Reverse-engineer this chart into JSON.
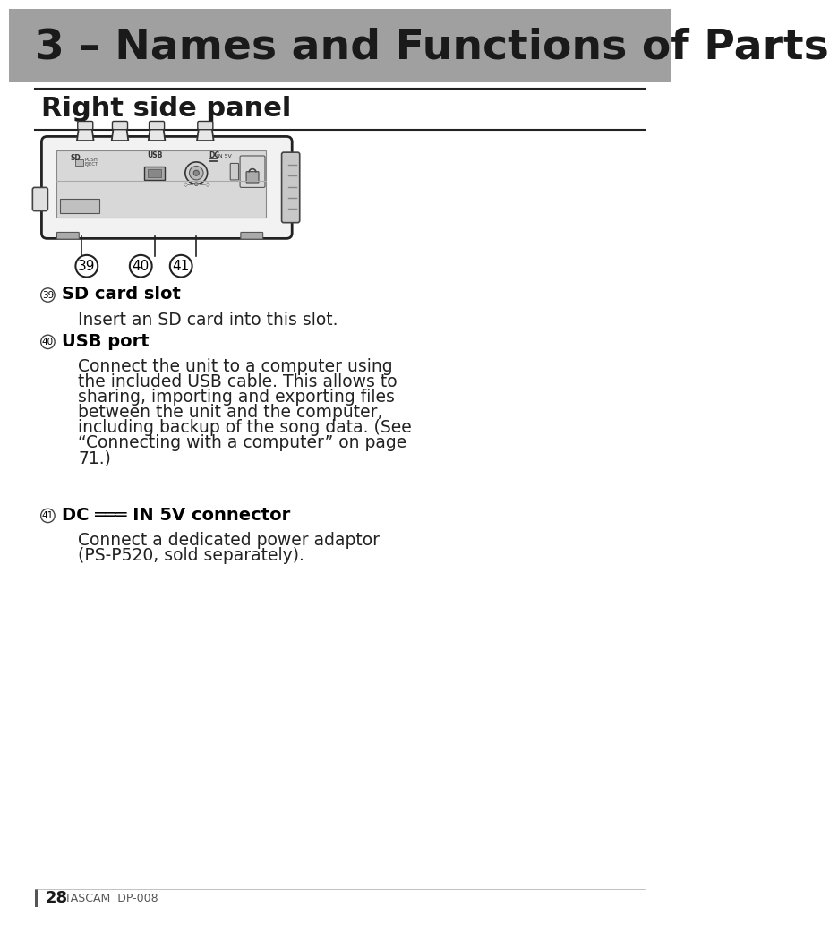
{
  "title": "3 – Names and Functions of Parts",
  "title_bg_color": "#a0a0a0",
  "title_text_color": "#1a1a1a",
  "section_title": "Right side panel",
  "items": [
    {
      "number": "39",
      "label": "SD card slot",
      "description": "Insert an SD card into this slot."
    },
    {
      "number": "40",
      "label": "USB port",
      "description": "Connect the unit to a computer using\nthe included USB cable. This allows to\nsharing, importing and exporting files\nbetween the unit and the computer,\nincluding backup of the song data. (See\n“Connecting with a computer” on page\n71.)"
    },
    {
      "number": "41",
      "label": "DC ═══ IN 5V connector",
      "description": "Connect a dedicated power adaptor\n(PS-P520, sold separately)."
    }
  ],
  "footer_page": "28",
  "footer_brand": "TASCAM  DP-008",
  "bg_color": "#ffffff"
}
